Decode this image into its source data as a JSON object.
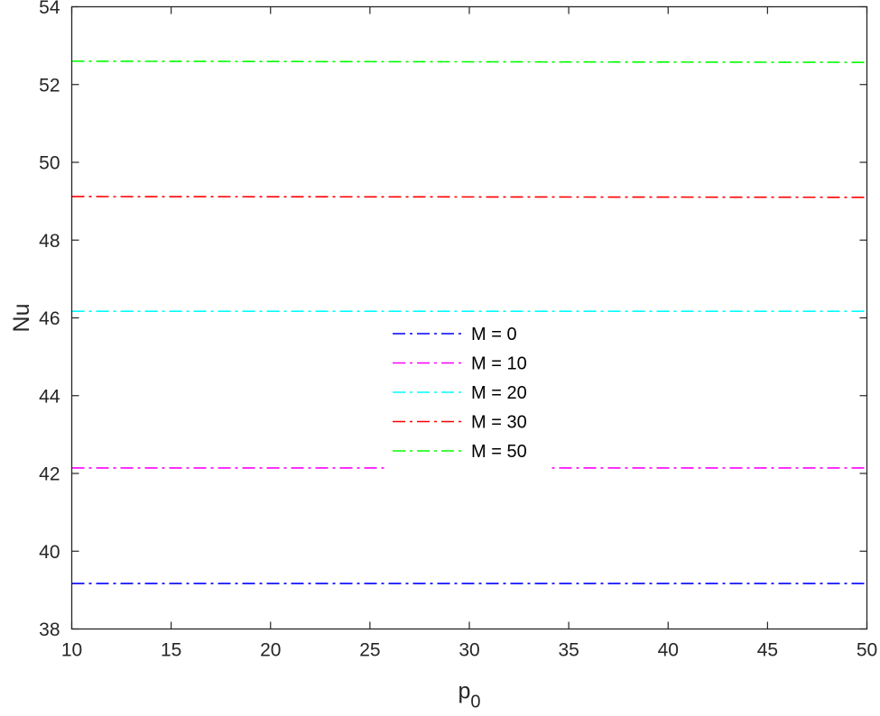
{
  "chart_data": {
    "type": "line",
    "title": "",
    "xlabel": "p",
    "xlabel_subscript": "0",
    "ylabel": "Nu",
    "xlim": [
      10,
      50
    ],
    "ylim": [
      38,
      54
    ],
    "xticks": [
      10,
      15,
      20,
      25,
      30,
      35,
      40,
      45,
      50
    ],
    "yticks": [
      38,
      40,
      42,
      44,
      46,
      48,
      50,
      52,
      54
    ],
    "grid": false,
    "line_style": "dash-dot",
    "legend_position": "center",
    "x": [
      10,
      50
    ],
    "series": [
      {
        "name": "M = 0",
        "color": "#0000ff",
        "values": [
          39.17,
          39.17
        ]
      },
      {
        "name": "M = 10",
        "color": "#ff00ff",
        "values": [
          42.14,
          42.14
        ]
      },
      {
        "name": "M = 20",
        "color": "#00ffff",
        "values": [
          46.17,
          46.17
        ]
      },
      {
        "name": "M = 30",
        "color": "#ff0000",
        "values": [
          49.12,
          49.1
        ]
      },
      {
        "name": "M = 50",
        "color": "#00ff00",
        "values": [
          52.6,
          52.57
        ]
      }
    ]
  }
}
